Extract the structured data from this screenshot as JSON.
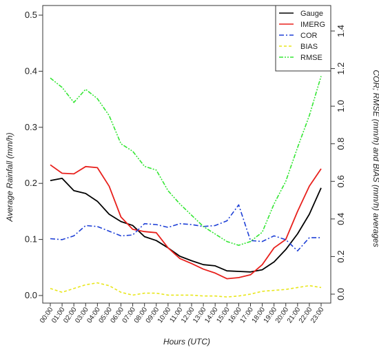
{
  "chart_data": {
    "type": "line",
    "xlabel": "Hours (UTC)",
    "ylabel": "Average Rainfall (mm/h)",
    "y2label": "COR; RMSE (mm/h) and BIAS (mm/h) averages",
    "categories": [
      "00:00",
      "01:00",
      "02:00",
      "03:00",
      "04:00",
      "05:00",
      "06:00",
      "07:00",
      "08:00",
      "09:00",
      "10:00",
      "11:00",
      "12:00",
      "13:00",
      "14:00",
      "15:00",
      "16:00",
      "17:00",
      "18:00",
      "19:00",
      "20:00",
      "21:00",
      "22:00",
      "23:00"
    ],
    "ylim": [
      0,
      0.5
    ],
    "yticks": [
      "0.0",
      "0.1",
      "0.2",
      "0.3",
      "0.4",
      "0.5"
    ],
    "y2lim": [
      0,
      1.5
    ],
    "y2ticks": [
      "0.0",
      "0.2",
      "0.4",
      "0.6",
      "0.8",
      "1.0",
      "1.2",
      "1.4"
    ],
    "legend_position": "top-right",
    "series": [
      {
        "name": "Gauge",
        "axis": "left",
        "color": "#000000",
        "dash": "solid",
        "values": [
          0.205,
          0.209,
          0.187,
          0.182,
          0.168,
          0.145,
          0.132,
          0.125,
          0.105,
          0.098,
          0.085,
          0.07,
          0.062,
          0.055,
          0.053,
          0.044,
          0.043,
          0.042,
          0.046,
          0.06,
          0.082,
          0.11,
          0.145,
          0.192
        ]
      },
      {
        "name": "IMERG",
        "axis": "left",
        "color": "#e8201c",
        "dash": "solid",
        "values": [
          0.233,
          0.218,
          0.217,
          0.23,
          0.228,
          0.195,
          0.14,
          0.118,
          0.114,
          0.112,
          0.085,
          0.066,
          0.057,
          0.047,
          0.04,
          0.03,
          0.032,
          0.037,
          0.055,
          0.085,
          0.1,
          0.15,
          0.195,
          0.226
        ]
      },
      {
        "name": "COR",
        "axis": "right",
        "color": "#1d3fd6",
        "dash": "dashdot",
        "values": [
          0.295,
          0.29,
          0.31,
          0.365,
          0.36,
          0.335,
          0.31,
          0.315,
          0.375,
          0.37,
          0.355,
          0.375,
          0.37,
          0.36,
          0.365,
          0.39,
          0.475,
          0.285,
          0.28,
          0.31,
          0.29,
          0.23,
          0.3,
          0.3
        ]
      },
      {
        "name": "BIAS",
        "axis": "right",
        "color": "#e8e61a",
        "dash": "dashed",
        "values": [
          0.03,
          0.01,
          0.03,
          0.05,
          0.06,
          0.045,
          0.01,
          -0.005,
          0.005,
          0.005,
          -0.005,
          -0.005,
          -0.005,
          -0.01,
          -0.01,
          -0.015,
          -0.01,
          0.0,
          0.015,
          0.02,
          0.025,
          0.035,
          0.045,
          0.035
        ]
      },
      {
        "name": "RMSE",
        "axis": "right",
        "color": "#33e633",
        "dash": "dashdotdot",
        "values": [
          1.15,
          1.1,
          1.02,
          1.09,
          1.04,
          0.95,
          0.8,
          0.76,
          0.68,
          0.66,
          0.55,
          0.48,
          0.42,
          0.36,
          0.32,
          0.28,
          0.26,
          0.28,
          0.33,
          0.48,
          0.6,
          0.78,
          0.95,
          1.16
        ]
      }
    ]
  }
}
